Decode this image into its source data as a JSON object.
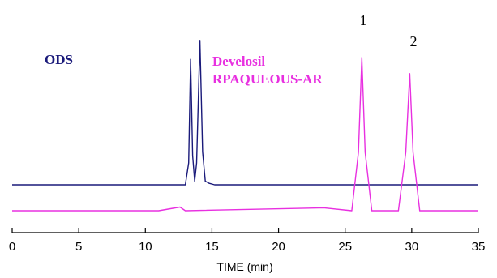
{
  "chart_data": {
    "type": "line",
    "title": "",
    "xlabel": "TIME (min)",
    "ylabel": "",
    "xlim": [
      0,
      35
    ],
    "x_ticks": [
      0,
      5,
      10,
      15,
      20,
      25,
      30,
      35
    ],
    "x_tick_labels": [
      "0",
      "5",
      "10",
      "15",
      "20",
      "25",
      "30",
      "35"
    ],
    "grid": false,
    "legend": "inline text labels",
    "series": [
      {
        "name": "ODS",
        "color": "#1a1a7a",
        "x": [
          0.0,
          13.0,
          13.25,
          13.4,
          13.55,
          13.7,
          13.85,
          14.1,
          14.3,
          14.5,
          14.8,
          15.2,
          35.0
        ],
        "peak_heights": [
          0.0,
          0.0,
          0.3,
          1.72,
          0.4,
          0.05,
          0.3,
          1.98,
          0.45,
          0.05,
          0.02,
          0.0,
          0.0
        ]
      },
      {
        "name": "Develosil RPAQUEOUS-AR",
        "color": "#e830e0",
        "x": [
          0.0,
          11.0,
          12.6,
          13.0,
          23.4,
          25.5,
          26.0,
          26.25,
          26.5,
          27.0,
          29.0,
          29.55,
          29.85,
          30.1,
          30.6,
          35.0
        ],
        "peak_heights": [
          0.0,
          0.0,
          0.05,
          0.0,
          0.04,
          0.0,
          0.8,
          2.1,
          0.8,
          0.0,
          0.0,
          0.8,
          1.88,
          0.8,
          0.0,
          0.0
        ]
      }
    ],
    "annotations": [
      {
        "text": "1",
        "x": 26.2
      },
      {
        "text": "2",
        "x": 29.9
      }
    ]
  },
  "labels": {
    "ods": "ODS",
    "develosil_line1": "Develosil",
    "develosil_line2": "RPAQUEOUS-AR"
  }
}
